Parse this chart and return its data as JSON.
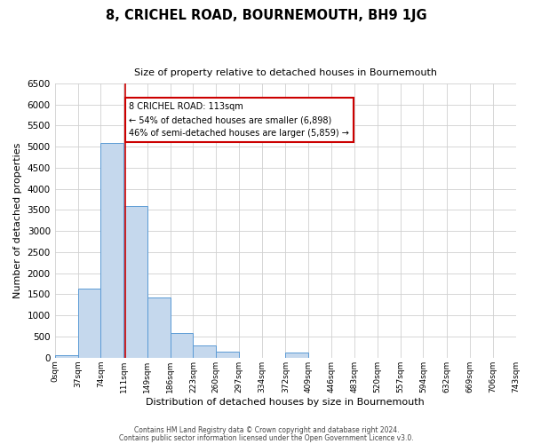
{
  "title": "8, CRICHEL ROAD, BOURNEMOUTH, BH9 1JG",
  "subtitle": "Size of property relative to detached houses in Bournemouth",
  "xlabel": "Distribution of detached houses by size in Bournemouth",
  "ylabel": "Number of detached properties",
  "bar_edges": [
    0,
    37,
    74,
    111,
    149,
    186,
    223,
    260,
    297,
    334,
    372,
    409,
    446,
    483,
    520,
    557,
    594,
    632,
    669,
    706,
    743
  ],
  "bar_heights": [
    50,
    1640,
    5080,
    3600,
    1430,
    590,
    300,
    150,
    0,
    0,
    130,
    0,
    0,
    0,
    0,
    0,
    0,
    0,
    0,
    0
  ],
  "bar_color": "#c5d8ed",
  "bar_edge_color": "#5b9bd5",
  "property_value": 113,
  "vline_color": "#cc0000",
  "annotation_text": "8 CRICHEL ROAD: 113sqm\n← 54% of detached houses are smaller (6,898)\n46% of semi-detached houses are larger (5,859) →",
  "annotation_box_color": "#ffffff",
  "annotation_box_edge_color": "#cc0000",
  "ylim": [
    0,
    6500
  ],
  "yticks": [
    0,
    500,
    1000,
    1500,
    2000,
    2500,
    3000,
    3500,
    4000,
    4500,
    5000,
    5500,
    6000,
    6500
  ],
  "xtick_labels": [
    "0sqm",
    "37sqm",
    "74sqm",
    "111sqm",
    "149sqm",
    "186sqm",
    "223sqm",
    "260sqm",
    "297sqm",
    "334sqm",
    "372sqm",
    "409sqm",
    "446sqm",
    "483sqm",
    "520sqm",
    "557sqm",
    "594sqm",
    "632sqm",
    "669sqm",
    "706sqm",
    "743sqm"
  ],
  "footer_line1": "Contains HM Land Registry data © Crown copyright and database right 2024.",
  "footer_line2": "Contains public sector information licensed under the Open Government Licence v3.0.",
  "background_color": "#ffffff",
  "grid_color": "#d0d0d0",
  "fig_width": 6.0,
  "fig_height": 5.0,
  "dpi": 100
}
